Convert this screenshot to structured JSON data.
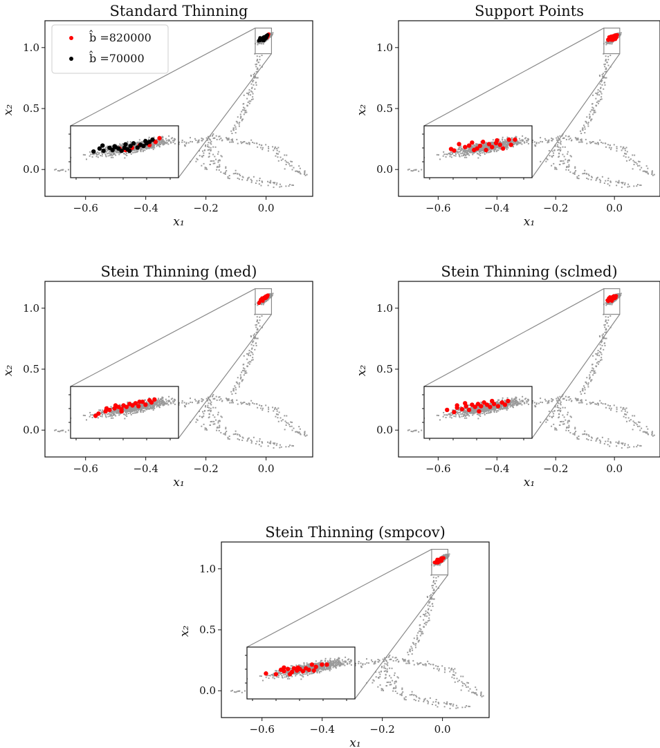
{
  "chart_data": [
    {
      "type": "scatter",
      "title": "Standard Thinning",
      "xlabel": "x₁",
      "ylabel": "x₂",
      "xticks": [
        "−0.6",
        "−0.4",
        "−0.2",
        "0.0"
      ],
      "yticks": [
        "0.0",
        "0.5",
        "1.0"
      ],
      "legend": {
        "placement": "top-left",
        "entries": [
          {
            "label": "b̂ =820000",
            "color": "#ff0000"
          },
          {
            "label": "b̂ =70000",
            "color": "#000000"
          }
        ]
      },
      "series": [
        {
          "name": "b̂ =820000",
          "color": "#ff0000",
          "points": [
            [
              -0.0085,
              1.062
            ],
            [
              -0.0052,
              1.071
            ],
            [
              -0.0015,
              1.081
            ],
            [
              0.0035,
              1.082
            ],
            [
              -0.0115,
              1.068
            ],
            [
              0.0065,
              1.095
            ],
            [
              0.0085,
              1.11
            ]
          ]
        },
        {
          "name": "b̂ =70000",
          "color": "#000000",
          "points": [
            [
              -0.0245,
              1.056
            ],
            [
              -0.02,
              1.08
            ],
            [
              -0.0215,
              1.068
            ],
            [
              -0.0165,
              1.071
            ],
            [
              -0.015,
              1.062
            ],
            [
              -0.0135,
              1.074
            ],
            [
              -0.012,
              1.068
            ],
            [
              -0.0105,
              1.059
            ],
            [
              -0.009,
              1.071
            ],
            [
              -0.0075,
              1.065
            ],
            [
              -0.006,
              1.078
            ],
            [
              -0.0045,
              1.089
            ],
            [
              -0.0025,
              1.072
            ],
            [
              -0.001,
              1.083
            ],
            [
              0.0005,
              1.078
            ],
            [
              0.002,
              1.089
            ],
            [
              0.0035,
              1.095
            ],
            [
              0.005,
              1.104
            ],
            [
              -0.0195,
              1.059
            ],
            [
              -0.0065,
              1.059
            ],
            [
              -0.014,
              1.077
            ],
            [
              -0.0085,
              1.085
            ],
            [
              0.0015,
              1.098
            ]
          ]
        }
      ]
    },
    {
      "type": "scatter",
      "title": "Support Points",
      "xlabel": "x₁",
      "ylabel": "x₂",
      "xticks": [
        "−0.6",
        "−0.4",
        "−0.2",
        "0.0"
      ],
      "yticks": [
        "0.0",
        "0.5",
        "1.0"
      ],
      "series": [
        {
          "name": "",
          "color": "#ff0000",
          "points": [
            [
              -0.0225,
              1.066
            ],
            [
              -0.0185,
              1.086
            ],
            [
              -0.0155,
              1.074
            ],
            [
              -0.012,
              1.092
            ],
            [
              -0.0095,
              1.068
            ],
            [
              -0.008,
              1.079
            ],
            [
              -0.005,
              1.062
            ],
            [
              -0.0035,
              1.086
            ],
            [
              -0.002,
              1.074
            ],
            [
              0.0005,
              1.101
            ],
            [
              0.002,
              1.083
            ],
            [
              0.0035,
              1.068
            ],
            [
              0.0065,
              1.104
            ],
            [
              0.0075,
              1.083
            ],
            [
              -0.0135,
              1.08
            ],
            [
              -0.0065,
              1.095
            ],
            [
              0.0095,
              1.104
            ],
            [
              -0.021,
              1.06
            ],
            [
              -0.011,
              1.062
            ],
            [
              0.0,
              1.09
            ]
          ]
        }
      ]
    },
    {
      "type": "scatter",
      "title": "Stein Thinning (med)",
      "xlabel": "x₁",
      "ylabel": "x₂",
      "xticks": [
        "−0.6",
        "−0.4",
        "−0.2",
        "0.0"
      ],
      "yticks": [
        "0.0",
        "0.5",
        "1.0"
      ],
      "series": [
        {
          "name": "",
          "color": "#ff0000",
          "points": [
            [
              -0.0235,
              1.041
            ],
            [
              -0.022,
              1.05
            ],
            [
              -0.0185,
              1.059
            ],
            [
              -0.0165,
              1.065
            ],
            [
              -0.014,
              1.071
            ],
            [
              -0.012,
              1.077
            ],
            [
              -0.0105,
              1.068
            ],
            [
              -0.0095,
              1.083
            ],
            [
              -0.008,
              1.077
            ],
            [
              -0.0065,
              1.089
            ],
            [
              -0.005,
              1.083
            ],
            [
              -0.0035,
              1.092
            ],
            [
              -0.002,
              1.08
            ],
            [
              0.0,
              1.098
            ],
            [
              0.0015,
              1.086
            ],
            [
              0.0035,
              1.104
            ],
            [
              0.0045,
              1.095
            ],
            [
              -0.0105,
              1.059
            ],
            [
              -0.0135,
              1.083
            ],
            [
              0.006,
              1.107
            ],
            [
              -0.018,
              1.071
            ],
            [
              -0.0015,
              1.098
            ]
          ]
        }
      ]
    },
    {
      "type": "scatter",
      "title": "Stein Thinning (sclmed)",
      "xlabel": "x₁",
      "ylabel": "x₂",
      "xticks": [
        "−0.6",
        "−0.4",
        "−0.2",
        "0.0"
      ],
      "yticks": [
        "0.0",
        "0.5",
        "1.0"
      ],
      "series": [
        {
          "name": "",
          "color": "#ff0000",
          "points": [
            [
              -0.0245,
              1.065
            ],
            [
              -0.021,
              1.056
            ],
            [
              -0.0195,
              1.074
            ],
            [
              -0.017,
              1.068
            ],
            [
              -0.015,
              1.08
            ],
            [
              -0.0135,
              1.065
            ],
            [
              -0.012,
              1.086
            ],
            [
              -0.0105,
              1.077
            ],
            [
              -0.009,
              1.089
            ],
            [
              -0.0075,
              1.08
            ],
            [
              -0.006,
              1.095
            ],
            [
              -0.0045,
              1.086
            ],
            [
              -0.003,
              1.077
            ],
            [
              -0.001,
              1.089
            ],
            [
              0.001,
              1.08
            ],
            [
              0.003,
              1.095
            ],
            [
              0.0045,
              1.086
            ],
            [
              -0.0085,
              1.059
            ],
            [
              -0.0155,
              1.092
            ],
            [
              0.006,
              1.101
            ],
            [
              -0.0195,
              1.083
            ],
            [
              -0.002,
              1.101
            ]
          ]
        }
      ]
    },
    {
      "type": "scatter",
      "title": "Stein Thinning (smpcov)",
      "xlabel": "x₁",
      "ylabel": "x₂",
      "xticks": [
        "−0.6",
        "−0.4",
        "−0.2",
        "0.0"
      ],
      "yticks": [
        "0.0",
        "0.5",
        "1.0"
      ],
      "series": [
        {
          "name": "",
          "color": "#ff0000",
          "points": [
            [
              -0.0265,
              1.053
            ],
            [
              -0.0215,
              1.05
            ],
            [
              -0.019,
              1.068
            ],
            [
              -0.0175,
              1.062
            ],
            [
              -0.0155,
              1.071
            ],
            [
              -0.0135,
              1.059
            ],
            [
              -0.0125,
              1.074
            ],
            [
              -0.011,
              1.065
            ],
            [
              -0.0095,
              1.071
            ],
            [
              -0.008,
              1.062
            ],
            [
              -0.0065,
              1.074
            ],
            [
              -0.005,
              1.068
            ],
            [
              -0.0035,
              1.089
            ],
            [
              -0.0015,
              1.08
            ],
            [
              0.0015,
              1.089
            ],
            [
              0.004,
              1.089
            ],
            [
              -0.0145,
              1.05
            ],
            [
              -0.0175,
              1.077
            ],
            [
              -0.0105,
              1.077
            ],
            [
              -0.0025,
              1.065
            ]
          ]
        }
      ]
    }
  ]
}
